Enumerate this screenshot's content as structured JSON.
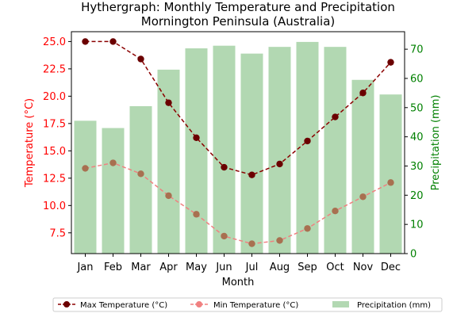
{
  "chart_data": {
    "type": "bar+line",
    "title": "Hythergraph: Monthly Temperature and Precipitation",
    "subtitle": "Mornington Peninsula (Australia)",
    "xlabel": "Month",
    "ylabel_left": "Temperature (°C)",
    "ylabel_right": "Precipitation (mm)",
    "categories": [
      "Jan",
      "Feb",
      "Mar",
      "Apr",
      "May",
      "Jun",
      "Jul",
      "Aug",
      "Sep",
      "Oct",
      "Nov",
      "Dec"
    ],
    "ylim_left": [
      5.6,
      25.9
    ],
    "ylim_right": [
      0,
      76
    ],
    "yticks_left": [
      "7.5",
      "10.0",
      "12.5",
      "15.0",
      "17.5",
      "20.0",
      "22.5",
      "25.0"
    ],
    "yticks_right": [
      "0",
      "10",
      "20",
      "30",
      "40",
      "50",
      "60",
      "70"
    ],
    "series": [
      {
        "name": "Max Temperature (°C)",
        "axis": "left",
        "type": "line",
        "values": [
          25.0,
          25.0,
          23.4,
          19.4,
          16.2,
          13.5,
          12.8,
          13.8,
          15.9,
          18.1,
          20.3,
          23.1
        ]
      },
      {
        "name": "Min Temperature (°C)",
        "axis": "left",
        "type": "line",
        "values": [
          13.4,
          13.9,
          12.9,
          10.9,
          9.2,
          7.2,
          6.5,
          6.8,
          7.9,
          9.5,
          10.8,
          12.1
        ]
      },
      {
        "name": "Precipitation (mm)",
        "axis": "right",
        "type": "bar",
        "values": [
          45.5,
          43,
          50.5,
          63,
          70.3,
          71.2,
          68.5,
          70.8,
          72.5,
          70.8,
          59.5,
          54.5
        ]
      }
    ],
    "colors": {
      "max_line": "#8b0000",
      "max_marker": "#6b0000",
      "min_line": "#f08080",
      "min_marker": "#a87050",
      "bars": "#b2d8b2",
      "left_axis": "#ff0000",
      "right_axis": "#008000"
    },
    "legend_placement": "bottom-center",
    "grid": false
  }
}
